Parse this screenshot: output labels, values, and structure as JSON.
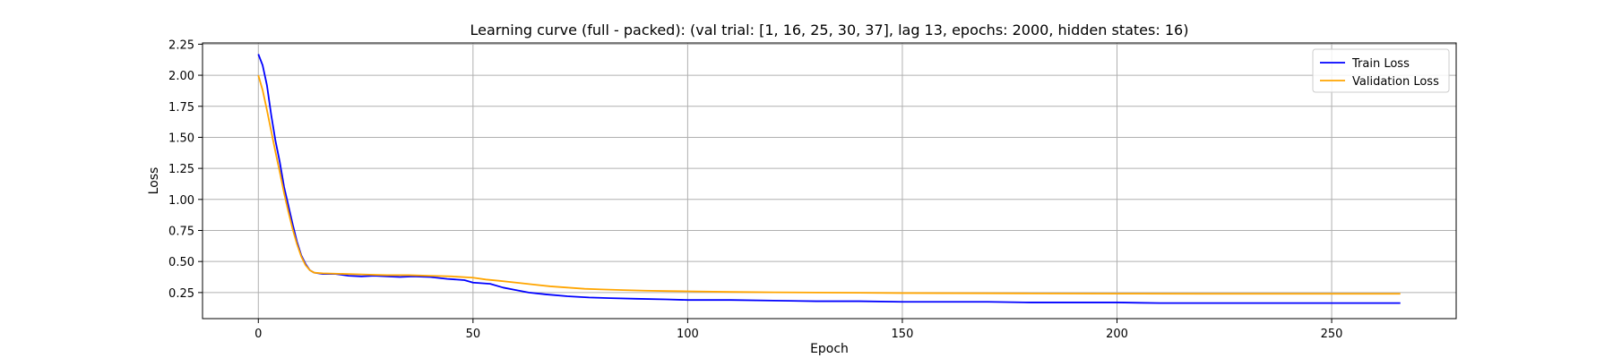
{
  "chart_data": {
    "type": "line",
    "title": "Learning curve (full - packed): (val trial: [1, 16, 25, 30, 37], lag 13, epochs: 2000, hidden states: 16)",
    "xlabel": "Epoch",
    "ylabel": "Loss",
    "xlim": [
      -13,
      279
    ],
    "ylim": [
      0.04,
      2.26
    ],
    "xticks": [
      0,
      50,
      100,
      150,
      200,
      250
    ],
    "yticks": [
      0.25,
      0.5,
      0.75,
      1.0,
      1.25,
      1.5,
      1.75,
      2.0,
      2.25
    ],
    "ytick_labels": [
      "0.25",
      "0.50",
      "0.75",
      "1.00",
      "1.25",
      "1.50",
      "1.75",
      "2.00",
      "2.25"
    ],
    "grid": true,
    "legend_position": "top-right",
    "series": [
      {
        "name": "Train Loss",
        "color": "#0000ff",
        "points": [
          [
            0,
            2.17
          ],
          [
            1,
            2.08
          ],
          [
            2,
            1.92
          ],
          [
            3,
            1.68
          ],
          [
            4,
            1.47
          ],
          [
            5,
            1.3
          ],
          [
            6,
            1.1
          ],
          [
            7,
            0.95
          ],
          [
            8,
            0.8
          ],
          [
            9,
            0.66
          ],
          [
            10,
            0.55
          ],
          [
            11,
            0.48
          ],
          [
            12,
            0.43
          ],
          [
            13,
            0.41
          ],
          [
            15,
            0.4
          ],
          [
            18,
            0.4
          ],
          [
            21,
            0.385
          ],
          [
            24,
            0.38
          ],
          [
            27,
            0.385
          ],
          [
            30,
            0.38
          ],
          [
            33,
            0.375
          ],
          [
            36,
            0.38
          ],
          [
            40,
            0.375
          ],
          [
            44,
            0.36
          ],
          [
            48,
            0.35
          ],
          [
            50,
            0.33
          ],
          [
            54,
            0.32
          ],
          [
            57,
            0.29
          ],
          [
            60,
            0.27
          ],
          [
            63,
            0.25
          ],
          [
            67,
            0.235
          ],
          [
            72,
            0.22
          ],
          [
            77,
            0.21
          ],
          [
            82,
            0.205
          ],
          [
            88,
            0.2
          ],
          [
            95,
            0.195
          ],
          [
            100,
            0.19
          ],
          [
            110,
            0.19
          ],
          [
            120,
            0.185
          ],
          [
            130,
            0.18
          ],
          [
            140,
            0.18
          ],
          [
            150,
            0.175
          ],
          [
            160,
            0.175
          ],
          [
            170,
            0.175
          ],
          [
            180,
            0.17
          ],
          [
            190,
            0.17
          ],
          [
            200,
            0.17
          ],
          [
            210,
            0.165
          ],
          [
            220,
            0.165
          ],
          [
            230,
            0.165
          ],
          [
            240,
            0.165
          ],
          [
            250,
            0.165
          ],
          [
            260,
            0.165
          ],
          [
            266,
            0.165
          ]
        ]
      },
      {
        "name": "Validation Loss",
        "color": "#ffa500",
        "points": [
          [
            0,
            2.0
          ],
          [
            1,
            1.88
          ],
          [
            2,
            1.72
          ],
          [
            3,
            1.55
          ],
          [
            4,
            1.38
          ],
          [
            5,
            1.22
          ],
          [
            6,
            1.05
          ],
          [
            7,
            0.9
          ],
          [
            8,
            0.76
          ],
          [
            9,
            0.64
          ],
          [
            10,
            0.54
          ],
          [
            11,
            0.47
          ],
          [
            12,
            0.43
          ],
          [
            13,
            0.41
          ],
          [
            15,
            0.405
          ],
          [
            20,
            0.4
          ],
          [
            25,
            0.395
          ],
          [
            30,
            0.39
          ],
          [
            35,
            0.39
          ],
          [
            40,
            0.385
          ],
          [
            45,
            0.38
          ],
          [
            50,
            0.37
          ],
          [
            53,
            0.355
          ],
          [
            56,
            0.345
          ],
          [
            60,
            0.33
          ],
          [
            64,
            0.315
          ],
          [
            68,
            0.3
          ],
          [
            72,
            0.29
          ],
          [
            76,
            0.28
          ],
          [
            80,
            0.275
          ],
          [
            85,
            0.27
          ],
          [
            90,
            0.265
          ],
          [
            95,
            0.262
          ],
          [
            100,
            0.26
          ],
          [
            110,
            0.255
          ],
          [
            120,
            0.252
          ],
          [
            130,
            0.25
          ],
          [
            140,
            0.248
          ],
          [
            150,
            0.246
          ],
          [
            160,
            0.245
          ],
          [
            170,
            0.244
          ],
          [
            180,
            0.243
          ],
          [
            190,
            0.242
          ],
          [
            200,
            0.241
          ],
          [
            220,
            0.24
          ],
          [
            240,
            0.24
          ],
          [
            266,
            0.24
          ]
        ]
      }
    ]
  }
}
